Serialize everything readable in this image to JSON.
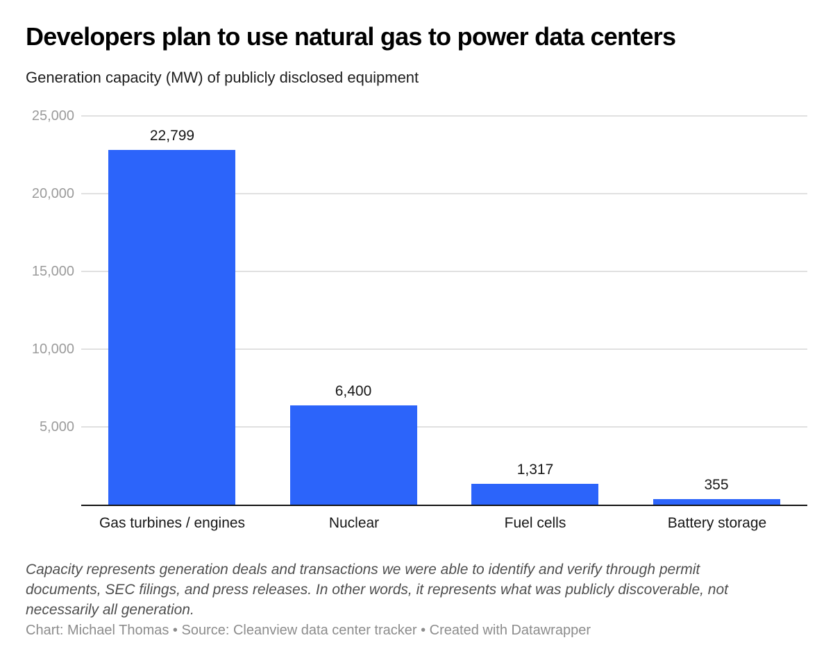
{
  "header": {
    "title": "Developers plan to use natural gas to power data centers",
    "subtitle": "Generation capacity (MW) of publicly disclosed equipment"
  },
  "chart_data": {
    "type": "bar",
    "title": "Developers plan to use natural gas to power data centers",
    "subtitle": "Generation capacity (MW) of publicly disclosed equipment",
    "categories": [
      "Gas turbines / engines",
      "Nuclear",
      "Fuel cells",
      "Battery storage"
    ],
    "values": [
      22799,
      6400,
      1317,
      355
    ],
    "value_labels": [
      "22,799",
      "6,400",
      "1,317",
      "355"
    ],
    "xlabel": "",
    "ylabel": "",
    "ylim": [
      0,
      25000
    ],
    "yticks": [
      5000,
      10000,
      15000,
      20000,
      25000
    ],
    "ytick_labels": [
      "5,000",
      "10,000",
      "15,000",
      "20,000",
      "25,000"
    ],
    "grid": true,
    "legend": "none",
    "bar_color": "#2c64fa"
  },
  "footer": {
    "note_lines": [
      "Capacity represents generation deals and transactions we were able to identify and verify through permit",
      "documents, SEC filings, and press releases. In other words, it represents what was publicly discoverable, not",
      "necessarily all generation."
    ],
    "credit": "Chart: Michael Thomas • Source: Cleanview data center tracker • Created with Datawrapper"
  },
  "colors": {
    "bar": "#2c64fa",
    "gridline": "#e0e0e0",
    "ytick_label": "#9b9b9b",
    "axis": "#111111",
    "text": "#161616",
    "footnote": "#4e4e4e",
    "credit": "#8c8c8c"
  }
}
